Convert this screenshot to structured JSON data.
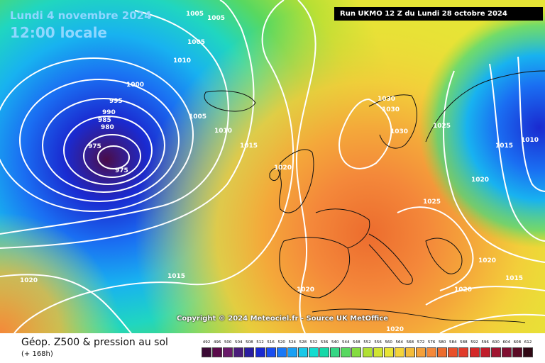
{
  "header": {
    "date": "Lundi 4 novembre 2024",
    "time": "12:00 locale",
    "run": "Run UKMO 12 Z du Lundi 28 octobre 2024"
  },
  "map": {
    "copyright": "Copyright © 2024 Meteociel.fr - Source UK MetOffice",
    "isobar_labels": [
      "1005",
      "1005",
      "1005",
      "1010",
      "1000",
      "995",
      "990",
      "985",
      "980",
      "975",
      "975",
      "1005",
      "1010",
      "1015",
      "1020",
      "1030",
      "1030",
      "1030",
      "1025",
      "1015",
      "1010",
      "1020",
      "1025",
      "1015",
      "1020",
      "1020",
      "1015",
      "1020",
      "1020",
      "1020"
    ]
  },
  "footer": {
    "title": "Géop. Z500 & pression au sol",
    "subtitle": "(+ 168h)"
  },
  "legend": {
    "values": [
      "492",
      "496",
      "500",
      "504",
      "508",
      "512",
      "516",
      "520",
      "524",
      "528",
      "532",
      "536",
      "540",
      "544",
      "548",
      "552",
      "556",
      "560",
      "564",
      "568",
      "572",
      "576",
      "580",
      "584",
      "588",
      "592",
      "596",
      "600",
      "604",
      "608",
      "612"
    ],
    "colors": [
      "#3b0a35",
      "#5a0a4a",
      "#6a1a6a",
      "#4a1c7a",
      "#2a1ea0",
      "#1a2ad0",
      "#1a4ef0",
      "#1a78f6",
      "#1aa0f4",
      "#1ac8e8",
      "#14dcd0",
      "#14d8a8",
      "#34d684",
      "#58d860",
      "#84dc40",
      "#b0e034",
      "#d0e432",
      "#e8e436",
      "#f4d43a",
      "#f4bc3a",
      "#f4a03a",
      "#f4883a",
      "#ec6c2e",
      "#e8502a",
      "#e03a2a",
      "#d42828",
      "#c01c2a",
      "#a01430",
      "#800e30",
      "#5a0a24",
      "#300814"
    ]
  }
}
